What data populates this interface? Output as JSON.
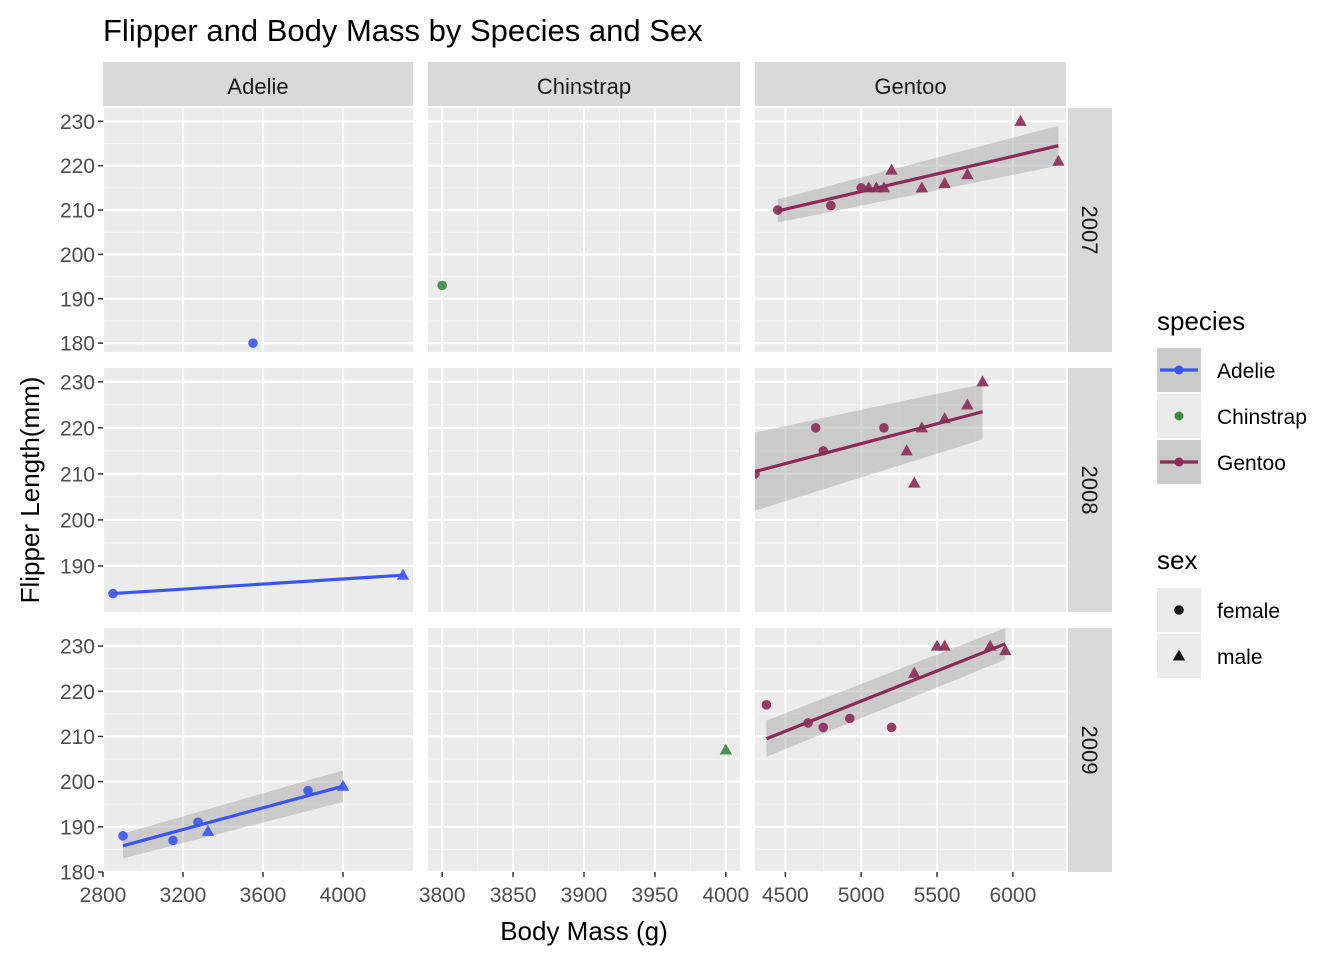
{
  "chart_data": {
    "type": "scatter",
    "title": "Flipper and Body Mass by Species and Sex",
    "xlabel": "Body Mass (g)",
    "ylabel": "Flipper Length(mm)",
    "facet_cols": [
      "Adelie",
      "Chinstrap",
      "Gentoo"
    ],
    "facet_rows": [
      "2007",
      "2008",
      "2009"
    ],
    "grid": true,
    "scales": "free",
    "x_axes": [
      {
        "range": [
          2800,
          4350
        ],
        "ticks": [
          2800,
          3200,
          3600,
          4000
        ],
        "tick_labels": [
          "2800",
          "3200",
          "3600",
          "4000"
        ]
      },
      {
        "range": [
          3790,
          4010
        ],
        "ticks": [
          3800,
          3850,
          3900,
          3950,
          4000
        ],
        "tick_labels": [
          "3800",
          "3850",
          "3900",
          "3950",
          "4000"
        ]
      },
      {
        "range": [
          4300,
          6350
        ],
        "ticks": [
          4500,
          5000,
          5500,
          6000
        ],
        "tick_labels": [
          "4500",
          "5000",
          "5500",
          "6000"
        ]
      }
    ],
    "y_axes": [
      {
        "range": [
          178,
          233
        ],
        "ticks": [
          180,
          190,
          200,
          210,
          220,
          230
        ],
        "tick_labels": [
          "180",
          "190",
          "200",
          "210",
          "220",
          "230"
        ]
      },
      {
        "range": [
          180,
          233
        ],
        "ticks": [
          190,
          200,
          210,
          220,
          230
        ],
        "tick_labels": [
          "190",
          "200",
          "210",
          "220",
          "230"
        ]
      },
      {
        "range": [
          180,
          234
        ],
        "ticks": [
          180,
          190,
          200,
          210,
          220,
          230
        ],
        "tick_labels": [
          "180",
          "190",
          "200",
          "210",
          "220",
          "230"
        ]
      }
    ],
    "series": [
      {
        "name": "Adelie",
        "color": "#3b55f2"
      },
      {
        "name": "Chinstrap",
        "color": "#3c8a40"
      },
      {
        "name": "Gentoo",
        "color": "#8b2b57"
      }
    ],
    "legends": [
      {
        "title": "species",
        "entries": [
          "Adelie",
          "Chinstrap",
          "Gentoo"
        ]
      },
      {
        "title": "sex",
        "entries": [
          "female",
          "male"
        ]
      }
    ],
    "panels": [
      {
        "row": 0,
        "col": 0,
        "points": [
          {
            "x": 3550,
            "y": 180,
            "sex": "female"
          }
        ],
        "fit": null
      },
      {
        "row": 0,
        "col": 1,
        "points": [
          {
            "x": 3800,
            "y": 193,
            "sex": "female"
          }
        ],
        "fit": null
      },
      {
        "row": 0,
        "col": 2,
        "points": [
          {
            "x": 4450,
            "y": 210,
            "sex": "female"
          },
          {
            "x": 4800,
            "y": 211,
            "sex": "female"
          },
          {
            "x": 5000,
            "y": 215,
            "sex": "female"
          },
          {
            "x": 5050,
            "y": 215,
            "sex": "male"
          },
          {
            "x": 5100,
            "y": 215,
            "sex": "male"
          },
          {
            "x": 5150,
            "y": 215,
            "sex": "male"
          },
          {
            "x": 5200,
            "y": 219,
            "sex": "male"
          },
          {
            "x": 5400,
            "y": 215,
            "sex": "male"
          },
          {
            "x": 5550,
            "y": 216,
            "sex": "male"
          },
          {
            "x": 5700,
            "y": 218,
            "sex": "male"
          },
          {
            "x": 6050,
            "y": 230,
            "sex": "male"
          },
          {
            "x": 6300,
            "y": 221,
            "sex": "male"
          }
        ],
        "fit": {
          "x": [
            4450,
            6300
          ],
          "y": [
            209.8,
            224.5
          ],
          "ci_lo": [
            207.2,
            220.0
          ],
          "ci_hi": [
            212.4,
            229.0
          ]
        }
      },
      {
        "row": 1,
        "col": 0,
        "points": [
          {
            "x": 2850,
            "y": 184,
            "sex": "female"
          },
          {
            "x": 4300,
            "y": 188,
            "sex": "male"
          }
        ],
        "fit": {
          "x": [
            2850,
            4300
          ],
          "y": [
            184,
            188
          ],
          "ci_lo": [
            184,
            188
          ],
          "ci_hi": [
            184,
            188
          ]
        }
      },
      {
        "row": 1,
        "col": 1,
        "points": [],
        "fit": null
      },
      {
        "row": 1,
        "col": 2,
        "points": [
          {
            "x": 4300,
            "y": 210,
            "sex": "female"
          },
          {
            "x": 4700,
            "y": 220,
            "sex": "female"
          },
          {
            "x": 4750,
            "y": 215,
            "sex": "female"
          },
          {
            "x": 5150,
            "y": 220,
            "sex": "female"
          },
          {
            "x": 5300,
            "y": 215,
            "sex": "male"
          },
          {
            "x": 5350,
            "y": 208,
            "sex": "male"
          },
          {
            "x": 5400,
            "y": 220,
            "sex": "male"
          },
          {
            "x": 5550,
            "y": 222,
            "sex": "male"
          },
          {
            "x": 5700,
            "y": 225,
            "sex": "male"
          },
          {
            "x": 5800,
            "y": 230,
            "sex": "male"
          }
        ],
        "fit": {
          "x": [
            4300,
            5800
          ],
          "y": [
            210.5,
            223.5
          ],
          "ci_lo": [
            202.0,
            217.5
          ],
          "ci_hi": [
            219.0,
            229.5
          ]
        }
      },
      {
        "row": 2,
        "col": 0,
        "points": [
          {
            "x": 2900,
            "y": 188,
            "sex": "female"
          },
          {
            "x": 3150,
            "y": 187,
            "sex": "female"
          },
          {
            "x": 3275,
            "y": 191,
            "sex": "female"
          },
          {
            "x": 3325,
            "y": 189,
            "sex": "male"
          },
          {
            "x": 3825,
            "y": 198,
            "sex": "female"
          },
          {
            "x": 4000,
            "y": 199,
            "sex": "male"
          }
        ],
        "fit": {
          "x": [
            2900,
            4000
          ],
          "y": [
            185.8,
            199.0
          ],
          "ci_lo": [
            183.0,
            195.5
          ],
          "ci_hi": [
            188.5,
            202.5
          ]
        }
      },
      {
        "row": 2,
        "col": 1,
        "points": [
          {
            "x": 4000,
            "y": 207,
            "sex": "male"
          }
        ],
        "fit": null
      },
      {
        "row": 2,
        "col": 2,
        "points": [
          {
            "x": 4375,
            "y": 217,
            "sex": "female"
          },
          {
            "x": 4650,
            "y": 213,
            "sex": "female"
          },
          {
            "x": 4750,
            "y": 212,
            "sex": "female"
          },
          {
            "x": 4925,
            "y": 214,
            "sex": "female"
          },
          {
            "x": 5200,
            "y": 212,
            "sex": "female"
          },
          {
            "x": 5350,
            "y": 224,
            "sex": "male"
          },
          {
            "x": 5500,
            "y": 230,
            "sex": "male"
          },
          {
            "x": 5550,
            "y": 230,
            "sex": "male"
          },
          {
            "x": 5850,
            "y": 230,
            "sex": "male"
          },
          {
            "x": 5950,
            "y": 229,
            "sex": "male"
          }
        ],
        "fit": {
          "x": [
            4375,
            5950
          ],
          "y": [
            209.5,
            230.5
          ],
          "ci_lo": [
            205.5,
            227.0
          ],
          "ci_hi": [
            213.5,
            234.0
          ]
        }
      }
    ]
  }
}
